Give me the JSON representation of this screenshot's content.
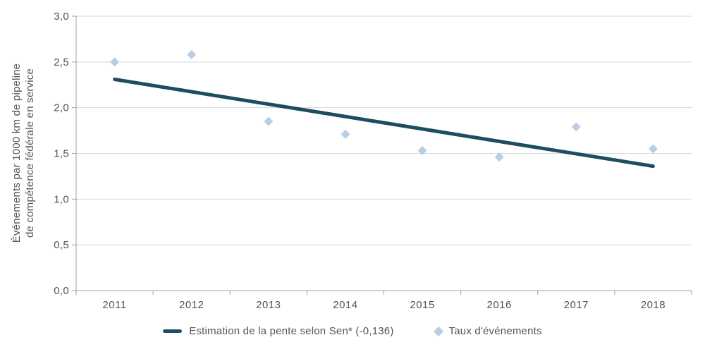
{
  "colors": {
    "marker": "#b9cde5",
    "trend_line": "#1e4d62",
    "gridline": "#d6d6d6",
    "axis": "#9f9f9f",
    "tick_text": "#545454"
  },
  "chart_data": {
    "type": "scatter",
    "x": [
      "2011",
      "2012",
      "2013",
      "2014",
      "2015",
      "2016",
      "2017",
      "2018"
    ],
    "series": [
      {
        "name": "Taux d'événements",
        "type": "scatter",
        "marker": "diamond",
        "values": [
          2.5,
          2.58,
          1.85,
          1.71,
          1.53,
          1.46,
          1.79,
          1.55
        ]
      },
      {
        "name": "Estimation de la pente selon Sen* (-0,136)",
        "type": "line",
        "slope": -0.136,
        "start_value": 2.31,
        "end_value": 1.36
      }
    ],
    "title": "",
    "xlabel": "",
    "ylabel_line1": "Événements par 1000 km de pipeline",
    "ylabel_line2": "de compétence fédérale en service",
    "ylim": [
      0,
      3
    ],
    "ytick_step": 0.5,
    "ytick_labels": [
      "0,0",
      "0,5",
      "1,0",
      "1,5",
      "2,0",
      "2,5",
      "3,0"
    ],
    "grid": "horizontal",
    "legend_position": "bottom"
  },
  "legend": {
    "trend_label": "Estimation de la pente selon Sen* (-0,136)",
    "scatter_label": "Taux d'événements"
  }
}
